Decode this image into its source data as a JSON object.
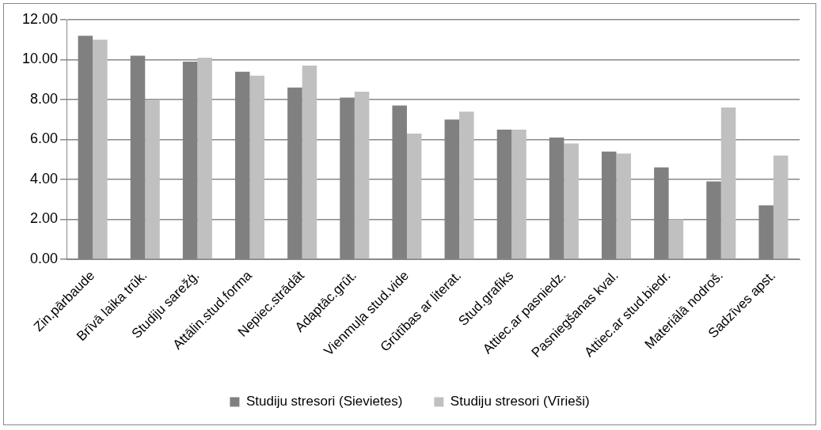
{
  "chart_data": {
    "type": "bar",
    "categories": [
      "Zin.pārbaude",
      "Brīvā laika trūk.",
      "Studiju sarežģ.",
      "Attālin.stud.forma",
      "Nepiec.strādāt",
      "Adaptāc.grūt.",
      "Vienmuļa stud.vide",
      "Grūtības ar literat.",
      "Stud.grafiks",
      "Attiec.ar pasniedz.",
      "Pasniegšanas kval.",
      "Attiec.ar stud.biedr.",
      "Materiālā nodroš.",
      "Sadzīves apst."
    ],
    "series": [
      {
        "name": "Studiju stresori (Sievietes)",
        "color": "#808080",
        "values": [
          11.2,
          10.2,
          9.9,
          9.4,
          8.6,
          8.1,
          7.7,
          7.0,
          6.5,
          6.1,
          5.4,
          4.6,
          3.9,
          2.7
        ]
      },
      {
        "name": "Studiju stresori (Vīrieši)",
        "color": "#c0c0c0",
        "values": [
          11.0,
          8.0,
          10.1,
          9.2,
          9.7,
          8.4,
          6.3,
          7.4,
          6.5,
          5.8,
          5.3,
          2.0,
          7.6,
          5.2
        ]
      }
    ],
    "ylim": [
      0,
      12
    ],
    "yticks": [
      {
        "value": 0,
        "label": "0.00"
      },
      {
        "value": 2,
        "label": "2.00"
      },
      {
        "value": 4,
        "label": "4.00"
      },
      {
        "value": 6,
        "label": "6.00"
      },
      {
        "value": 8,
        "label": "8.00"
      },
      {
        "value": 10,
        "label": "10.00"
      },
      {
        "value": 12,
        "label": "12.00"
      }
    ],
    "grid": "y",
    "legend": "bottom"
  }
}
